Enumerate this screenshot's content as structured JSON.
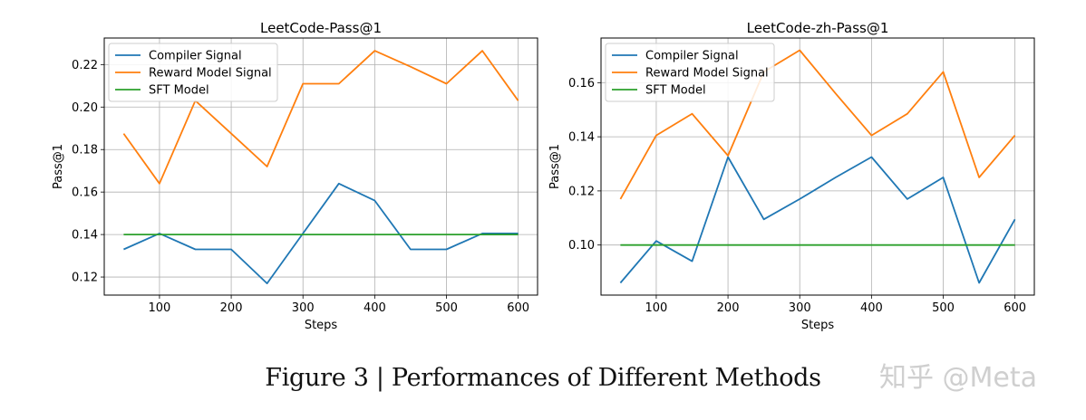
{
  "chart_data": [
    {
      "type": "line",
      "title": "LeetCode-Pass@1",
      "xlabel": "Steps",
      "ylabel": "Pass@1",
      "xlim": [
        23,
        627
      ],
      "ylim": [
        0.1115,
        0.2325
      ],
      "xticks": [
        100,
        200,
        300,
        400,
        500,
        600
      ],
      "yticks": [
        0.12,
        0.14,
        0.16,
        0.18,
        0.2,
        0.22
      ],
      "ytick_labels": [
        "0.12",
        "0.14",
        "0.16",
        "0.18",
        "0.20",
        "0.22"
      ],
      "grid": true,
      "legend_position": "top-left",
      "x": [
        50,
        100,
        150,
        200,
        250,
        300,
        350,
        400,
        450,
        500,
        550,
        600
      ],
      "series": [
        {
          "name": "Compiler Signal",
          "color": "#1f77b4",
          "values": [
            0.133,
            0.1405,
            0.133,
            0.133,
            0.117,
            0.1405,
            0.164,
            0.156,
            0.133,
            0.133,
            0.1405,
            0.1405
          ]
        },
        {
          "name": "Reward Model Signal",
          "color": "#ff7f0e",
          "values": [
            0.1875,
            0.164,
            0.203,
            0.1875,
            0.172,
            0.211,
            0.211,
            0.2265,
            0.219,
            0.211,
            0.2265,
            0.203
          ]
        },
        {
          "name": "SFT Model",
          "color": "#2ca02c",
          "values": [
            0.14,
            0.14,
            0.14,
            0.14,
            0.14,
            0.14,
            0.14,
            0.14,
            0.14,
            0.14,
            0.14,
            0.14
          ]
        }
      ]
    },
    {
      "type": "line",
      "title": "LeetCode-zh-Pass@1",
      "xlabel": "Steps",
      "ylabel": "Pass@1",
      "xlim": [
        23,
        627
      ],
      "ylim": [
        0.0815,
        0.1765
      ],
      "xticks": [
        100,
        200,
        300,
        400,
        500,
        600
      ],
      "yticks": [
        0.1,
        0.12,
        0.14,
        0.16
      ],
      "ytick_labels": [
        "0.10",
        "0.12",
        "0.14",
        "0.16"
      ],
      "grid": true,
      "legend_position": "top-left",
      "x": [
        50,
        100,
        150,
        200,
        250,
        300,
        350,
        400,
        450,
        500,
        550,
        600
      ],
      "series": [
        {
          "name": "Compiler Signal",
          "color": "#1f77b4",
          "values": [
            0.086,
            0.1015,
            0.094,
            0.1325,
            0.1095,
            0.117,
            0.125,
            0.1325,
            0.117,
            0.125,
            0.086,
            0.1095
          ]
        },
        {
          "name": "Reward Model Signal",
          "color": "#ff7f0e",
          "values": [
            0.117,
            0.1405,
            0.1485,
            0.133,
            0.164,
            0.172,
            0.156,
            0.1405,
            0.1485,
            0.164,
            0.125,
            0.1405
          ]
        },
        {
          "name": "SFT Model",
          "color": "#2ca02c",
          "values": [
            0.1,
            0.1,
            0.1,
            0.1,
            0.1,
            0.1,
            0.1,
            0.1,
            0.1,
            0.1,
            0.1,
            0.1
          ]
        }
      ]
    }
  ],
  "caption": "Figure 3 | Performances of Different Methods",
  "watermark": "知乎 @Meta"
}
